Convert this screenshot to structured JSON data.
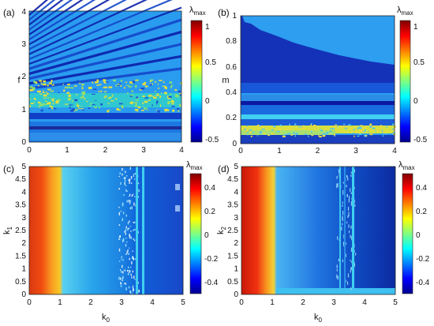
{
  "chart_data": [
    {
      "type": "heatmap",
      "panel_label": "(a)",
      "xlabel": "",
      "ylabel": "f",
      "xlim": [
        0,
        4
      ],
      "ylim": [
        0,
        4
      ],
      "x_ticks": [
        "0",
        "1",
        "2",
        "3",
        "4"
      ],
      "y_ticks": [
        "0",
        "1",
        "2",
        "3",
        "4"
      ],
      "colorbar_label": "λmax",
      "colorbar_ticks": [
        "1",
        "0.5",
        "0",
        "-0.5"
      ],
      "colorbar_range": [
        -0.6,
        1.1
      ]
    },
    {
      "type": "heatmap",
      "panel_label": "(b)",
      "xlabel": "",
      "ylabel": "m",
      "xlim": [
        0,
        4
      ],
      "ylim": [
        0,
        1
      ],
      "x_ticks": [
        "0",
        "1",
        "2",
        "3",
        "4"
      ],
      "y_ticks": [
        "0",
        "0.2",
        "0.4",
        "0.6",
        "0.8",
        "1"
      ],
      "colorbar_label": "λmax",
      "colorbar_ticks": [
        "1",
        "0.5",
        "0",
        "-0.5"
      ],
      "colorbar_range": [
        -0.6,
        1.1
      ]
    },
    {
      "type": "heatmap",
      "panel_label": "(c)",
      "xlabel": "k0",
      "ylabel": "k1",
      "xlim": [
        0,
        5
      ],
      "ylim": [
        0,
        5
      ],
      "x_ticks": [
        "0",
        "1",
        "2",
        "3",
        "4",
        "5"
      ],
      "y_ticks": [
        "0",
        "0.5",
        "1",
        "1.5",
        "2",
        "2.5",
        "3",
        "3.5",
        "4",
        "4.5",
        "5"
      ],
      "colorbar_label": "λmax",
      "colorbar_ticks": [
        "0.4",
        "0.2",
        "0",
        "-0.2",
        "-0.4"
      ],
      "colorbar_range": [
        -0.5,
        0.5
      ]
    },
    {
      "type": "heatmap",
      "panel_label": "(d)",
      "xlabel": "k0",
      "ylabel": "k2",
      "xlim": [
        0,
        5
      ],
      "ylim": [
        0,
        5
      ],
      "x_ticks": [
        "0",
        "1",
        "2",
        "3",
        "4",
        "5"
      ],
      "y_ticks": [
        "0",
        "0.5",
        "1",
        "1.5",
        "2",
        "2.5",
        "3",
        "3.5",
        "4",
        "4.5",
        "5"
      ],
      "colorbar_label": "λmax",
      "colorbar_ticks": [
        "0.4",
        "0.2",
        "0",
        "-0.2",
        "-0.4"
      ],
      "colorbar_range": [
        -0.5,
        0.5
      ]
    }
  ]
}
